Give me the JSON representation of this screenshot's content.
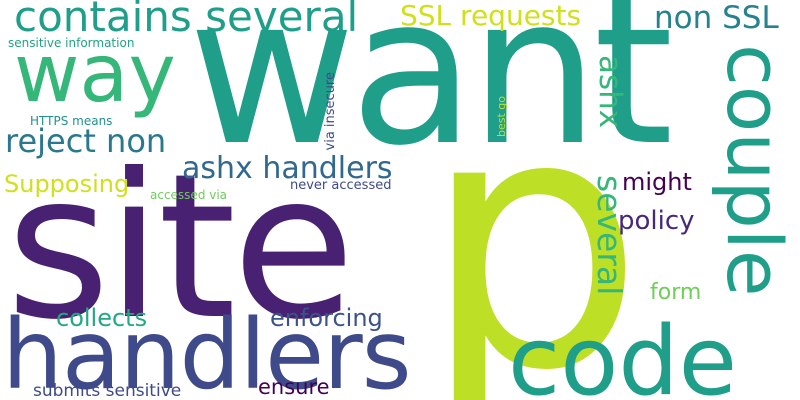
{
  "words": [
    {
      "text": "want",
      "color": "#1f9e89",
      "rotated": false
    },
    {
      "text": "p",
      "color": "#bddf26",
      "rotated": false
    },
    {
      "text": "site",
      "color": "#482173",
      "rotated": false
    },
    {
      "text": "handlers",
      "color": "#3e4a89",
      "rotated": false
    },
    {
      "text": "code",
      "color": "#1f9e89",
      "rotated": false
    },
    {
      "text": "couple",
      "color": "#1f9e89",
      "rotated": true
    },
    {
      "text": "way",
      "color": "#35b779",
      "rotated": false
    },
    {
      "text": "contains several",
      "color": "#1f9e89",
      "rotated": false
    },
    {
      "text": "SSL requests",
      "color": "#d0e11c",
      "rotated": false
    },
    {
      "text": "non SSL",
      "color": "#26828e",
      "rotated": false
    },
    {
      "text": "reject non",
      "color": "#2a788e",
      "rotated": false
    },
    {
      "text": "ashx handlers",
      "color": "#31688e",
      "rotated": false
    },
    {
      "text": "ashx",
      "color": "#35b779",
      "rotated": true
    },
    {
      "text": "several",
      "color": "#35b779",
      "rotated": true
    },
    {
      "text": "Supposing",
      "color": "#d0e11c",
      "rotated": false
    },
    {
      "text": "might",
      "color": "#440154",
      "rotated": false
    },
    {
      "text": "policy",
      "color": "#482878",
      "rotated": false
    },
    {
      "text": "form",
      "color": "#6ece58",
      "rotated": false
    },
    {
      "text": "collects",
      "color": "#22a884",
      "rotated": false
    },
    {
      "text": "enforcing",
      "color": "#3b528b",
      "rotated": false
    },
    {
      "text": "ensure",
      "color": "#440154",
      "rotated": false
    },
    {
      "text": "submits sensitive",
      "color": "#3e4a89",
      "rotated": false
    },
    {
      "text": "sensitive information",
      "color": "#20a386",
      "rotated": false
    },
    {
      "text": "HTTPS means",
      "color": "#21918c",
      "rotated": false
    },
    {
      "text": "via insecure",
      "color": "#3e4a89",
      "rotated": true
    },
    {
      "text": "best go",
      "color": "#bddf26",
      "rotated": true
    },
    {
      "text": "never accessed",
      "color": "#3e4a89",
      "rotated": false
    },
    {
      "text": "accessed via",
      "color": "#6ece58",
      "rotated": false
    }
  ]
}
